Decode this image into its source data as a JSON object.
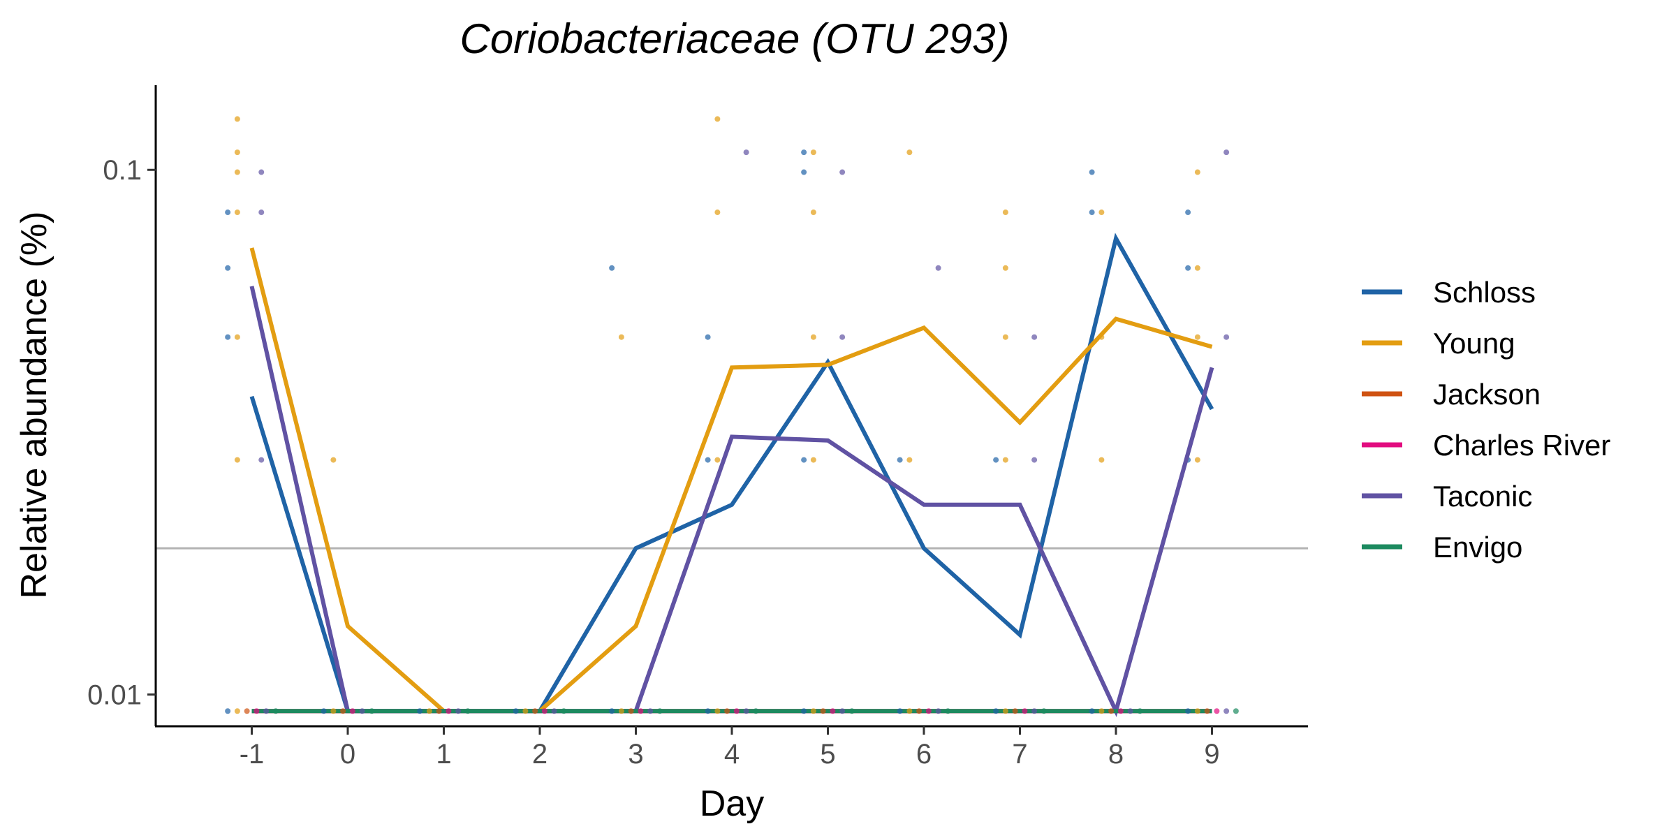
{
  "chart_data": {
    "type": "line",
    "title": "Coriobacteriaceae (OTU 293)",
    "xlabel": "Day",
    "ylabel": "Relative abundance (%)",
    "x_scale": "linear",
    "y_scale": "log",
    "xlim": [
      -2,
      10
    ],
    "ylim": [
      0.0087,
      0.145
    ],
    "x_ticks": [
      -1,
      0,
      1,
      2,
      3,
      4,
      5,
      6,
      7,
      8,
      9
    ],
    "x_tick_labels": [
      "-1",
      "0",
      "1",
      "2",
      "3",
      "4",
      "5",
      "6",
      "7",
      "8",
      "9"
    ],
    "y_ticks": [
      0.01,
      0.1
    ],
    "y_tick_labels": [
      "0.01",
      "0.1"
    ],
    "limit_of_detection": 0.019,
    "floor_value": 0.0093,
    "grid": false,
    "legend_position": "right",
    "x": [
      -1,
      0,
      1,
      2,
      3,
      4,
      5,
      6,
      7,
      8,
      9
    ],
    "series": [
      {
        "name": "Schloss",
        "color": "#1f63a6",
        "values": [
          0.037,
          0.0093,
          0.0093,
          0.0093,
          0.019,
          0.023,
          0.043,
          0.019,
          0.013,
          0.074,
          0.035
        ]
      },
      {
        "name": "Young",
        "color": "#e39d11",
        "values": [
          0.071,
          0.0135,
          0.0093,
          0.0093,
          0.0135,
          0.042,
          0.0425,
          0.05,
          0.033,
          0.052,
          0.046
        ]
      },
      {
        "name": "Jackson",
        "color": "#cf5211",
        "values": [
          0.0093,
          0.0093,
          0.0093,
          0.0093,
          0.0093,
          0.0093,
          0.0093,
          0.0093,
          0.0093,
          0.0093,
          0.0093
        ]
      },
      {
        "name": "Charles River",
        "color": "#e20c7f",
        "values": [
          0.0093,
          0.0093,
          0.0093,
          0.0093,
          0.0093,
          0.0093,
          0.0093,
          0.0093,
          0.0093,
          0.0093,
          0.0093
        ]
      },
      {
        "name": "Taconic",
        "color": "#6052a3",
        "values": [
          0.06,
          0.0093,
          0.0093,
          0.0093,
          0.0093,
          0.031,
          0.0305,
          0.023,
          0.023,
          0.0093,
          0.042
        ]
      },
      {
        "name": "Envigo",
        "color": "#1c8a5f",
        "values": [
          0.0093,
          0.0093,
          0.0093,
          0.0093,
          0.0093,
          0.0093,
          0.0093,
          0.0093,
          0.0093,
          0.0093,
          0.0093
        ]
      }
    ],
    "points": [
      {
        "series": "Schloss",
        "x": -1.25,
        "y": 0.083
      },
      {
        "series": "Schloss",
        "x": -1.25,
        "y": 0.065
      },
      {
        "series": "Schloss",
        "x": -1.25,
        "y": 0.048
      },
      {
        "series": "Young",
        "x": -1.15,
        "y": 0.125
      },
      {
        "series": "Young",
        "x": -1.15,
        "y": 0.108
      },
      {
        "series": "Young",
        "x": -1.15,
        "y": 0.099
      },
      {
        "series": "Young",
        "x": -1.15,
        "y": 0.083
      },
      {
        "series": "Young",
        "x": -1.15,
        "y": 0.048
      },
      {
        "series": "Young",
        "x": -1.15,
        "y": 0.028
      },
      {
        "series": "Taconic",
        "x": -0.9,
        "y": 0.099
      },
      {
        "series": "Taconic",
        "x": -0.9,
        "y": 0.083
      },
      {
        "series": "Taconic",
        "x": -0.9,
        "y": 0.028
      },
      {
        "series": "Young",
        "x": -0.15,
        "y": 0.028
      },
      {
        "series": "Schloss",
        "x": 2.75,
        "y": 0.065
      },
      {
        "series": "Young",
        "x": 2.85,
        "y": 0.048
      },
      {
        "series": "Schloss",
        "x": 3.75,
        "y": 0.048
      },
      {
        "series": "Schloss",
        "x": 3.75,
        "y": 0.028
      },
      {
        "series": "Young",
        "x": 3.85,
        "y": 0.125
      },
      {
        "series": "Young",
        "x": 3.85,
        "y": 0.083
      },
      {
        "series": "Young",
        "x": 3.85,
        "y": 0.028
      },
      {
        "series": "Taconic",
        "x": 4.15,
        "y": 0.108
      },
      {
        "series": "Schloss",
        "x": 4.75,
        "y": 0.108
      },
      {
        "series": "Schloss",
        "x": 4.75,
        "y": 0.099
      },
      {
        "series": "Schloss",
        "x": 4.75,
        "y": 0.028
      },
      {
        "series": "Young",
        "x": 4.85,
        "y": 0.108
      },
      {
        "series": "Young",
        "x": 4.85,
        "y": 0.083
      },
      {
        "series": "Young",
        "x": 4.85,
        "y": 0.048
      },
      {
        "series": "Young",
        "x": 4.85,
        "y": 0.028
      },
      {
        "series": "Taconic",
        "x": 5.15,
        "y": 0.099
      },
      {
        "series": "Taconic",
        "x": 5.15,
        "y": 0.048
      },
      {
        "series": "Schloss",
        "x": 5.75,
        "y": 0.028
      },
      {
        "series": "Young",
        "x": 5.85,
        "y": 0.108
      },
      {
        "series": "Young",
        "x": 5.85,
        "y": 0.028
      },
      {
        "series": "Taconic",
        "x": 6.15,
        "y": 0.065
      },
      {
        "series": "Schloss",
        "x": 6.75,
        "y": 0.028
      },
      {
        "series": "Young",
        "x": 6.85,
        "y": 0.083
      },
      {
        "series": "Young",
        "x": 6.85,
        "y": 0.065
      },
      {
        "series": "Young",
        "x": 6.85,
        "y": 0.048
      },
      {
        "series": "Young",
        "x": 6.85,
        "y": 0.028
      },
      {
        "series": "Taconic",
        "x": 7.15,
        "y": 0.048
      },
      {
        "series": "Taconic",
        "x": 7.15,
        "y": 0.028
      },
      {
        "series": "Schloss",
        "x": 7.75,
        "y": 0.099
      },
      {
        "series": "Schloss",
        "x": 7.75,
        "y": 0.083
      },
      {
        "series": "Young",
        "x": 7.85,
        "y": 0.083
      },
      {
        "series": "Young",
        "x": 7.85,
        "y": 0.048
      },
      {
        "series": "Young",
        "x": 7.85,
        "y": 0.028
      },
      {
        "series": "Schloss",
        "x": 8.75,
        "y": 0.083
      },
      {
        "series": "Schloss",
        "x": 8.75,
        "y": 0.065
      },
      {
        "series": "Schloss",
        "x": 8.75,
        "y": 0.028
      },
      {
        "series": "Young",
        "x": 8.85,
        "y": 0.099
      },
      {
        "series": "Young",
        "x": 8.85,
        "y": 0.065
      },
      {
        "series": "Young",
        "x": 8.85,
        "y": 0.048
      },
      {
        "series": "Young",
        "x": 8.85,
        "y": 0.028
      },
      {
        "series": "Taconic",
        "x": 9.15,
        "y": 0.108
      },
      {
        "series": "Taconic",
        "x": 9.15,
        "y": 0.048
      }
    ]
  }
}
